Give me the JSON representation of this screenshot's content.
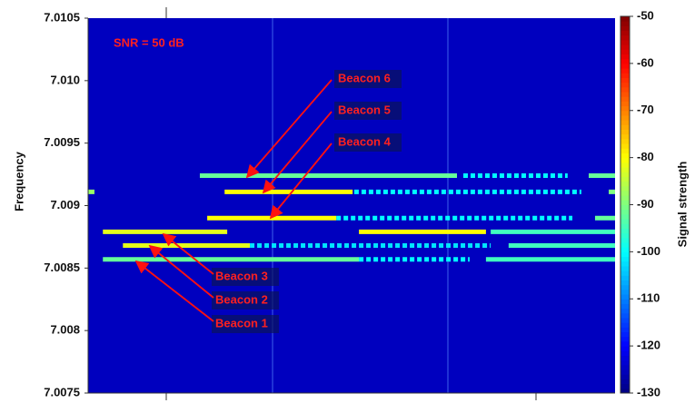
{
  "chart_data": {
    "type": "spectrogram",
    "ylabel": "Frequency",
    "colorbar_label": "Signal strength",
    "annotations": [
      "SNR = 50 dB"
    ],
    "colormap": "jet",
    "background": -125,
    "xlim": [
      0,
      100
    ],
    "ylim": [
      7.0075,
      7.0105
    ],
    "yticks": [
      7.0075,
      7.008,
      7.0085,
      7.009,
      7.0095,
      {
        "value": 7.01,
        "label": "7.010"
      },
      7.0105
    ],
    "clim": [
      -130,
      -50
    ],
    "cticks": [
      -50,
      -60,
      -70,
      -80,
      -90,
      -100,
      -110,
      -120,
      -130
    ],
    "series": [
      {
        "name": "Beacon 1",
        "frequency": 7.00857,
        "segments": [
          {
            "x": [
              2.8,
              51.4
            ],
            "value": -92,
            "dashed": false
          },
          {
            "x": [
              51.4,
              72.4
            ],
            "value": -100,
            "dashed": true
          },
          {
            "x": [
              75.5,
              100
            ],
            "value": -95,
            "dashed": false
          }
        ]
      },
      {
        "name": "Beacon 2",
        "frequency": 7.00868,
        "segments": [
          {
            "x": [
              6.6,
              30.7
            ],
            "value": -82,
            "dashed": false
          },
          {
            "x": [
              30.7,
              76.4
            ],
            "value": -102,
            "dashed": true
          },
          {
            "x": [
              79.8,
              100
            ],
            "value": -95,
            "dashed": false
          }
        ]
      },
      {
        "name": "Beacon 3",
        "frequency": 7.00879,
        "segments": [
          {
            "x": [
              2.8,
              26.4
            ],
            "value": -82,
            "dashed": false
          },
          {
            "x": [
              51.4,
              75.5
            ],
            "value": -80,
            "dashed": false
          },
          {
            "x": [
              76.4,
              100
            ],
            "value": -95,
            "dashed": false
          }
        ]
      },
      {
        "name": "Beacon 4",
        "frequency": 7.0089,
        "segments": [
          {
            "x": [
              22.6,
              47.1
            ],
            "value": -80,
            "dashed": false
          },
          {
            "x": [
              47.1,
              91.9
            ],
            "value": -100,
            "dashed": true
          },
          {
            "x": [
              96.2,
              100
            ],
            "value": -92,
            "dashed": false
          }
        ]
      },
      {
        "name": "Beacon 5",
        "frequency": 7.00911,
        "segments": [
          {
            "x": [
              0,
              1.2
            ],
            "value": -88,
            "dashed": false
          },
          {
            "x": [
              25.9,
              50.2
            ],
            "value": -80,
            "dashed": false
          },
          {
            "x": [
              50.5,
              93.6
            ],
            "value": -100,
            "dashed": true
          },
          {
            "x": [
              98.8,
              100
            ],
            "value": -90,
            "dashed": false
          }
        ]
      },
      {
        "name": "Beacon 6",
        "frequency": 7.00924,
        "segments": [
          {
            "x": [
              21.2,
              70.0
            ],
            "value": -92,
            "dashed": false
          },
          {
            "x": [
              71.2,
              91.0
            ],
            "value": -100,
            "dashed": true
          },
          {
            "x": [
              95.0,
              100
            ],
            "value": -92,
            "dashed": false
          }
        ]
      }
    ]
  }
}
